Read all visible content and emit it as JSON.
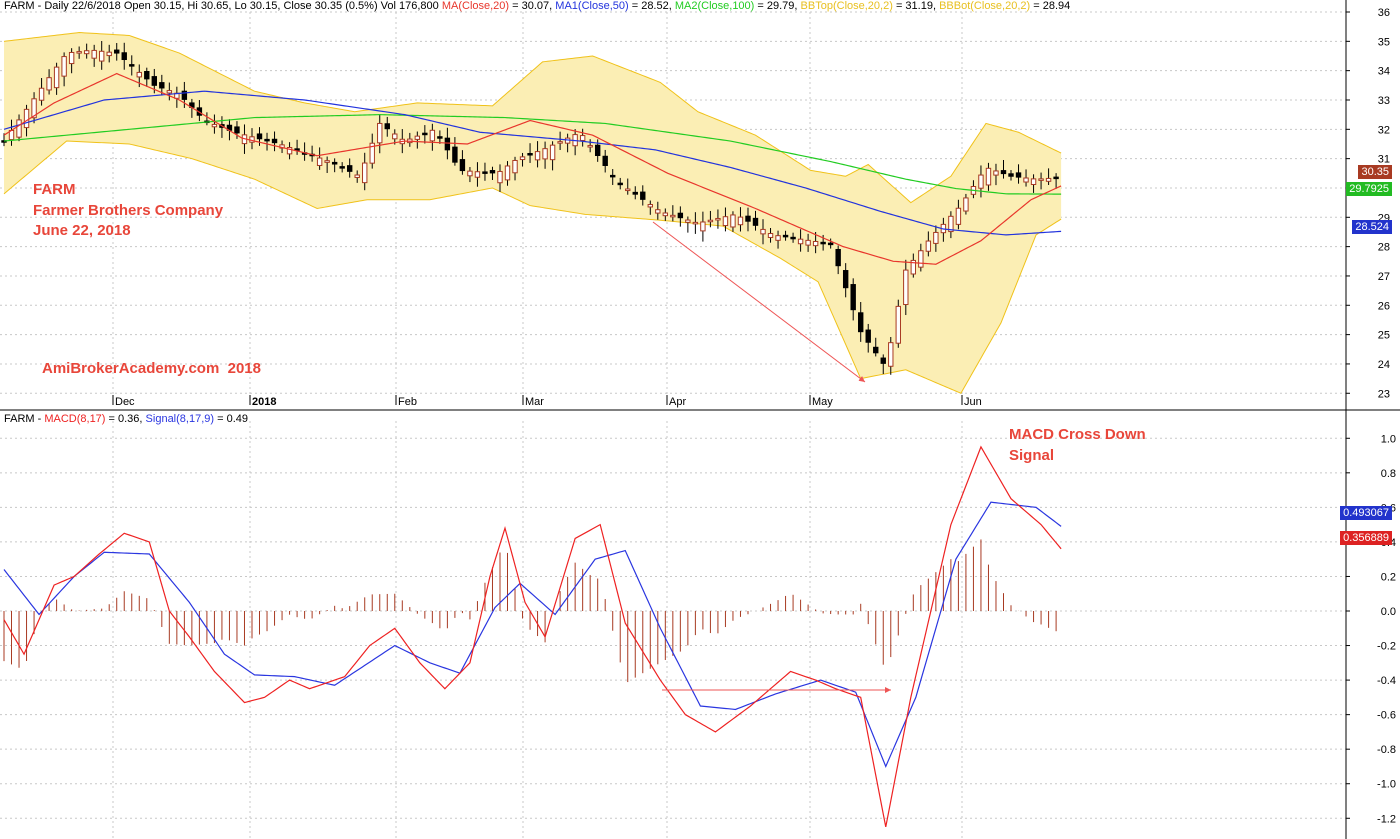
{
  "header_price": {
    "prefix": "FARM - Daily 22/6/2018 Open 30.15, Hi 30.65, Lo 30.15, Close 30.35 (0.5%) Vol 176,800",
    "ma20_label": "MA(Close,20)",
    "ma20_value": "= 30.07,",
    "ma50_label": "MA1(Close,50)",
    "ma50_value": "= 28.52,",
    "ma100_label": "MA2(Close,100)",
    "ma100_value": "= 29.79,",
    "bbtop_label": "BBTop(Close,20,2)",
    "bbtop_value": "= 31.19,",
    "bbbot_label": "BBBot(Close,20,2)",
    "bbbot_value": "= 28.94"
  },
  "header_macd": {
    "prefix": "FARM -",
    "macd_label": "MACD(8,17)",
    "macd_value": "= 0.36,",
    "signal_label": "Signal(8,17,9)",
    "signal_value": "= 0.49"
  },
  "annotations": {
    "ticker": "FARM",
    "company": "Farmer Brothers Company",
    "date": "June 22, 2018",
    "watermark": "AmiBrokerAcademy.com  2018",
    "macd_note_line1": "MACD Cross Down",
    "macd_note_line2": "Signal"
  },
  "price_tags": {
    "close": "30.35",
    "ma100": "29.7925",
    "ma50": "28.524"
  },
  "macd_tags": {
    "signal": "0.493067",
    "macd": "0.356889"
  },
  "colors": {
    "ma20": "#e8362c",
    "ma50": "#2233dd",
    "ma100": "#22cc22",
    "bb_line": "#f0c21a",
    "bb_fill": "#fbeeb4",
    "macd": "#ee2222",
    "signal": "#2a36e0",
    "hist": "#a83a22",
    "ann_text": "#e8463a",
    "arrow": "#ee5555",
    "tag_close": "#a83a22",
    "tag_ma100": "#22bb22",
    "tag_ma50": "#2233cc",
    "tag_signal": "#2233cc",
    "tag_macd": "#dd2222"
  },
  "chart_data": [
    {
      "type": "candlestick",
      "title": "FARM - Daily",
      "x_ticks": [
        "Dec",
        "2018",
        "Feb",
        "Mar",
        "Apr",
        "May",
        "Jun"
      ],
      "x_ticks_bold": [
        false,
        true,
        false,
        false,
        false,
        false,
        false
      ],
      "x_tick_pos": [
        113,
        250,
        396,
        523,
        667,
        810,
        962
      ],
      "ylim": [
        22.6,
        36.0
      ],
      "y_ticks": [
        23,
        24,
        25,
        26,
        27,
        28,
        29,
        30,
        31,
        32,
        33,
        34,
        35,
        36
      ],
      "grid": true,
      "ohlc_anchors": [
        [
          0,
          31.6
        ],
        [
          10,
          32.8
        ],
        [
          25,
          34.6
        ],
        [
          35,
          34.7
        ],
        [
          45,
          34.6
        ],
        [
          60,
          33.5
        ],
        [
          70,
          33.2
        ],
        [
          80,
          32.3
        ],
        [
          92,
          31.9
        ],
        [
          110,
          31.5
        ],
        [
          130,
          30.9
        ],
        [
          142,
          30.4
        ],
        [
          150,
          32.2
        ],
        [
          160,
          31.6
        ],
        [
          172,
          32.0
        ],
        [
          182,
          30.6
        ],
        [
          197,
          30.5
        ],
        [
          205,
          31.0
        ],
        [
          215,
          31.3
        ],
        [
          230,
          31.9
        ],
        [
          245,
          30.2
        ],
        [
          262,
          29.2
        ],
        [
          277,
          28.8
        ],
        [
          292,
          29.1
        ],
        [
          307,
          28.4
        ],
        [
          322,
          28.2
        ],
        [
          330,
          28.1
        ],
        [
          342,
          25.1
        ],
        [
          352,
          23.9
        ],
        [
          360,
          27.2
        ],
        [
          370,
          28.3
        ],
        [
          382,
          29.4
        ],
        [
          392,
          30.7
        ],
        [
          402,
          30.4
        ],
        [
          412,
          30.3
        ],
        [
          422,
          30.35
        ]
      ],
      "sma20_anchors": [
        [
          0,
          31.8
        ],
        [
          20,
          32.9
        ],
        [
          45,
          33.9
        ],
        [
          70,
          33.0
        ],
        [
          95,
          31.7
        ],
        [
          125,
          31.1
        ],
        [
          160,
          31.6
        ],
        [
          185,
          31.5
        ],
        [
          210,
          32.3
        ],
        [
          235,
          31.8
        ],
        [
          265,
          30.5
        ],
        [
          300,
          29.3
        ],
        [
          335,
          28.0
        ],
        [
          355,
          27.5
        ],
        [
          372,
          27.4
        ],
        [
          390,
          28.2
        ],
        [
          410,
          29.6
        ],
        [
          422,
          30.07
        ]
      ],
      "sma50_anchors": [
        [
          0,
          32.0
        ],
        [
          40,
          33.0
        ],
        [
          80,
          33.3
        ],
        [
          120,
          33.0
        ],
        [
          160,
          32.5
        ],
        [
          190,
          31.9
        ],
        [
          230,
          31.6
        ],
        [
          260,
          31.3
        ],
        [
          290,
          30.7
        ],
        [
          320,
          30.0
        ],
        [
          350,
          29.2
        ],
        [
          375,
          28.6
        ],
        [
          400,
          28.4
        ],
        [
          422,
          28.52
        ]
      ],
      "sma100_anchors": [
        [
          0,
          31.6
        ],
        [
          50,
          32.0
        ],
        [
          100,
          32.4
        ],
        [
          150,
          32.5
        ],
        [
          200,
          32.4
        ],
        [
          240,
          32.2
        ],
        [
          290,
          31.6
        ],
        [
          330,
          30.9
        ],
        [
          360,
          30.3
        ],
        [
          380,
          29.98
        ],
        [
          400,
          29.8
        ],
        [
          422,
          29.79
        ]
      ],
      "bbtop_anchors": [
        [
          0,
          35.0
        ],
        [
          30,
          35.3
        ],
        [
          50,
          35.2
        ],
        [
          70,
          34.6
        ],
        [
          100,
          33.3
        ],
        [
          120,
          32.9
        ],
        [
          140,
          32.6
        ],
        [
          165,
          32.9
        ],
        [
          195,
          32.8
        ],
        [
          215,
          34.3
        ],
        [
          235,
          34.5
        ],
        [
          262,
          33.6
        ],
        [
          277,
          32.6
        ],
        [
          300,
          31.8
        ],
        [
          322,
          30.6
        ],
        [
          336,
          30.4
        ],
        [
          345,
          30.8
        ],
        [
          362,
          29.5
        ],
        [
          378,
          30.4
        ],
        [
          392,
          32.2
        ],
        [
          405,
          31.9
        ],
        [
          422,
          31.19
        ]
      ],
      "bbbot_anchors": [
        [
          0,
          29.8
        ],
        [
          25,
          31.6
        ],
        [
          50,
          31.5
        ],
        [
          75,
          31.0
        ],
        [
          100,
          30.3
        ],
        [
          125,
          29.3
        ],
        [
          145,
          29.6
        ],
        [
          170,
          29.6
        ],
        [
          195,
          30.0
        ],
        [
          210,
          29.4
        ],
        [
          232,
          29.1
        ],
        [
          262,
          28.9
        ],
        [
          287,
          28.7
        ],
        [
          310,
          27.6
        ],
        [
          325,
          26.8
        ],
        [
          342,
          23.5
        ],
        [
          360,
          23.8
        ],
        [
          382,
          23.0
        ],
        [
          398,
          25.4
        ],
        [
          412,
          28.4
        ],
        [
          422,
          28.94
        ]
      ]
    },
    {
      "type": "line",
      "title": "FARM - MACD(8,17), Signal(8,17,9)",
      "series_names": [
        "MACD(8,17)",
        "Signal(8,17,9)"
      ],
      "ylim": [
        -1.32,
        1.1
      ],
      "y_ticks": [
        -1.2,
        -1.0,
        -0.8,
        -0.6,
        -0.4,
        -0.2,
        0.0,
        0.2,
        0.4,
        0.6,
        0.8,
        1.0
      ],
      "grid": true,
      "macd_anchors": [
        [
          0,
          -0.05
        ],
        [
          8,
          -0.25
        ],
        [
          14,
          -0.05
        ],
        [
          20,
          0.15
        ],
        [
          28,
          0.2
        ],
        [
          38,
          0.33
        ],
        [
          48,
          0.45
        ],
        [
          58,
          0.4
        ],
        [
          66,
          0.0
        ],
        [
          74,
          -0.15
        ],
        [
          84,
          -0.35
        ],
        [
          96,
          -0.53
        ],
        [
          104,
          -0.5
        ],
        [
          114,
          -0.4
        ],
        [
          122,
          -0.45
        ],
        [
          128,
          -0.42
        ],
        [
          136,
          -0.38
        ],
        [
          146,
          -0.2
        ],
        [
          156,
          -0.1
        ],
        [
          166,
          -0.3
        ],
        [
          176,
          -0.45
        ],
        [
          186,
          -0.3
        ],
        [
          194,
          0.2
        ],
        [
          200,
          0.48
        ],
        [
          208,
          0.05
        ],
        [
          216,
          -0.15
        ],
        [
          228,
          0.42
        ],
        [
          238,
          0.5
        ],
        [
          248,
          -0.07
        ],
        [
          262,
          -0.4
        ],
        [
          272,
          -0.6
        ],
        [
          284,
          -0.7
        ],
        [
          298,
          -0.55
        ],
        [
          314,
          -0.35
        ],
        [
          324,
          -0.4
        ],
        [
          332,
          -0.45
        ],
        [
          342,
          -0.5
        ],
        [
          352,
          -1.25
        ],
        [
          362,
          -0.5
        ],
        [
          378,
          0.5
        ],
        [
          390,
          0.95
        ],
        [
          402,
          0.65
        ],
        [
          414,
          0.5
        ],
        [
          422,
          0.36
        ]
      ],
      "signal_anchors": [
        [
          0,
          0.24
        ],
        [
          14,
          -0.02
        ],
        [
          28,
          0.2
        ],
        [
          40,
          0.34
        ],
        [
          58,
          0.33
        ],
        [
          74,
          0.05
        ],
        [
          88,
          -0.25
        ],
        [
          100,
          -0.37
        ],
        [
          116,
          -0.38
        ],
        [
          132,
          -0.43
        ],
        [
          156,
          -0.2
        ],
        [
          170,
          -0.3
        ],
        [
          182,
          -0.36
        ],
        [
          196,
          0.02
        ],
        [
          206,
          0.16
        ],
        [
          220,
          -0.02
        ],
        [
          236,
          0.3
        ],
        [
          248,
          0.35
        ],
        [
          262,
          -0.1
        ],
        [
          278,
          -0.55
        ],
        [
          292,
          -0.57
        ],
        [
          308,
          -0.48
        ],
        [
          326,
          -0.4
        ],
        [
          340,
          -0.47
        ],
        [
          352,
          -0.9
        ],
        [
          364,
          -0.5
        ],
        [
          380,
          0.3
        ],
        [
          394,
          0.63
        ],
        [
          412,
          0.6
        ],
        [
          422,
          0.49
        ]
      ]
    }
  ]
}
